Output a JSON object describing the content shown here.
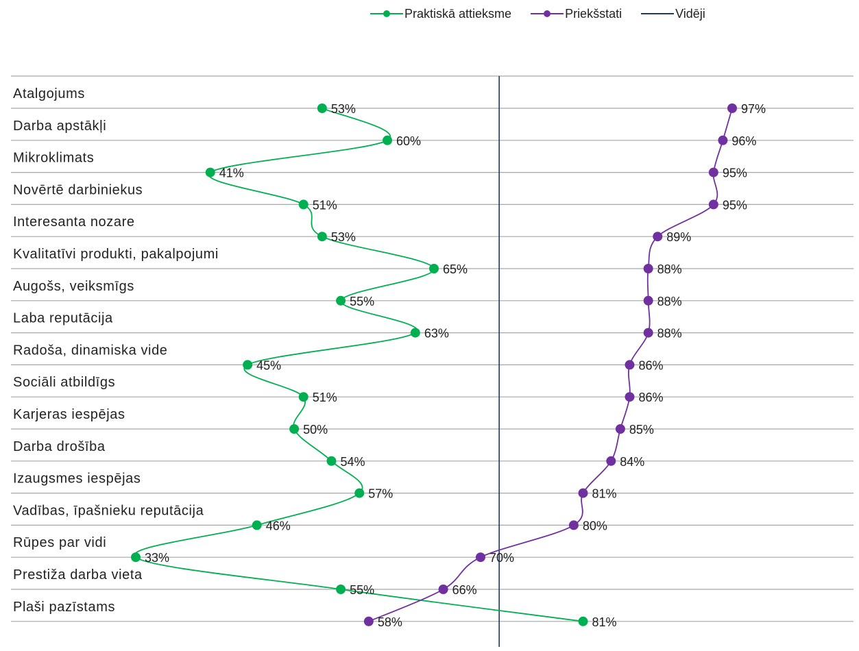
{
  "chart_data": {
    "type": "line",
    "orientation": "vertical-categories",
    "categories": [
      "Atalgojums",
      "Darba apstākļi",
      "Mikroklimats",
      "Novērtē darbiniekus",
      "Interesanta nozare",
      "Kvalitatīvi produkti, pakalpojumi",
      "Augošs, veiksmīgs",
      "Laba reputācija",
      "Radoša, dinamiska vide",
      "Sociāli atbildīgs",
      "Karjeras iespējas",
      "Darba drošība",
      "Izaugsmes iespējas",
      "Vadības, īpašnieku reputācija",
      "Rūpes par vidi",
      "Prestiža darba vieta",
      "Plaši pazīstams"
    ],
    "series": [
      {
        "name": "Praktiskā attieksme",
        "color": "#00B050",
        "values": [
          53,
          60,
          41,
          51,
          53,
          65,
          55,
          63,
          45,
          51,
          50,
          54,
          57,
          46,
          33,
          55,
          81
        ],
        "labels": [
          "53%",
          "60%",
          "41%",
          "51%",
          "53%",
          "65%",
          "55%",
          "63%",
          "45%",
          "51%",
          "50%",
          "54%",
          "57%",
          "46%",
          "33%",
          "55%",
          "81%"
        ]
      },
      {
        "name": "Priekšstati",
        "color": "#7030A0",
        "values": [
          97,
          96,
          95,
          95,
          89,
          88,
          88,
          88,
          86,
          86,
          85,
          84,
          81,
          80,
          70,
          66,
          58
        ],
        "labels": [
          "97%",
          "96%",
          "95%",
          "95%",
          "89%",
          "88%",
          "88%",
          "88%",
          "86%",
          "86%",
          "85%",
          "84%",
          "81%",
          "80%",
          "70%",
          "66%",
          "58%"
        ]
      }
    ],
    "reference_line": {
      "name": "Vidēji",
      "value": 72,
      "color": "#1F3864"
    },
    "xlim": [
      8,
      100
    ],
    "legend_position": "top",
    "grid": "horizontal"
  }
}
